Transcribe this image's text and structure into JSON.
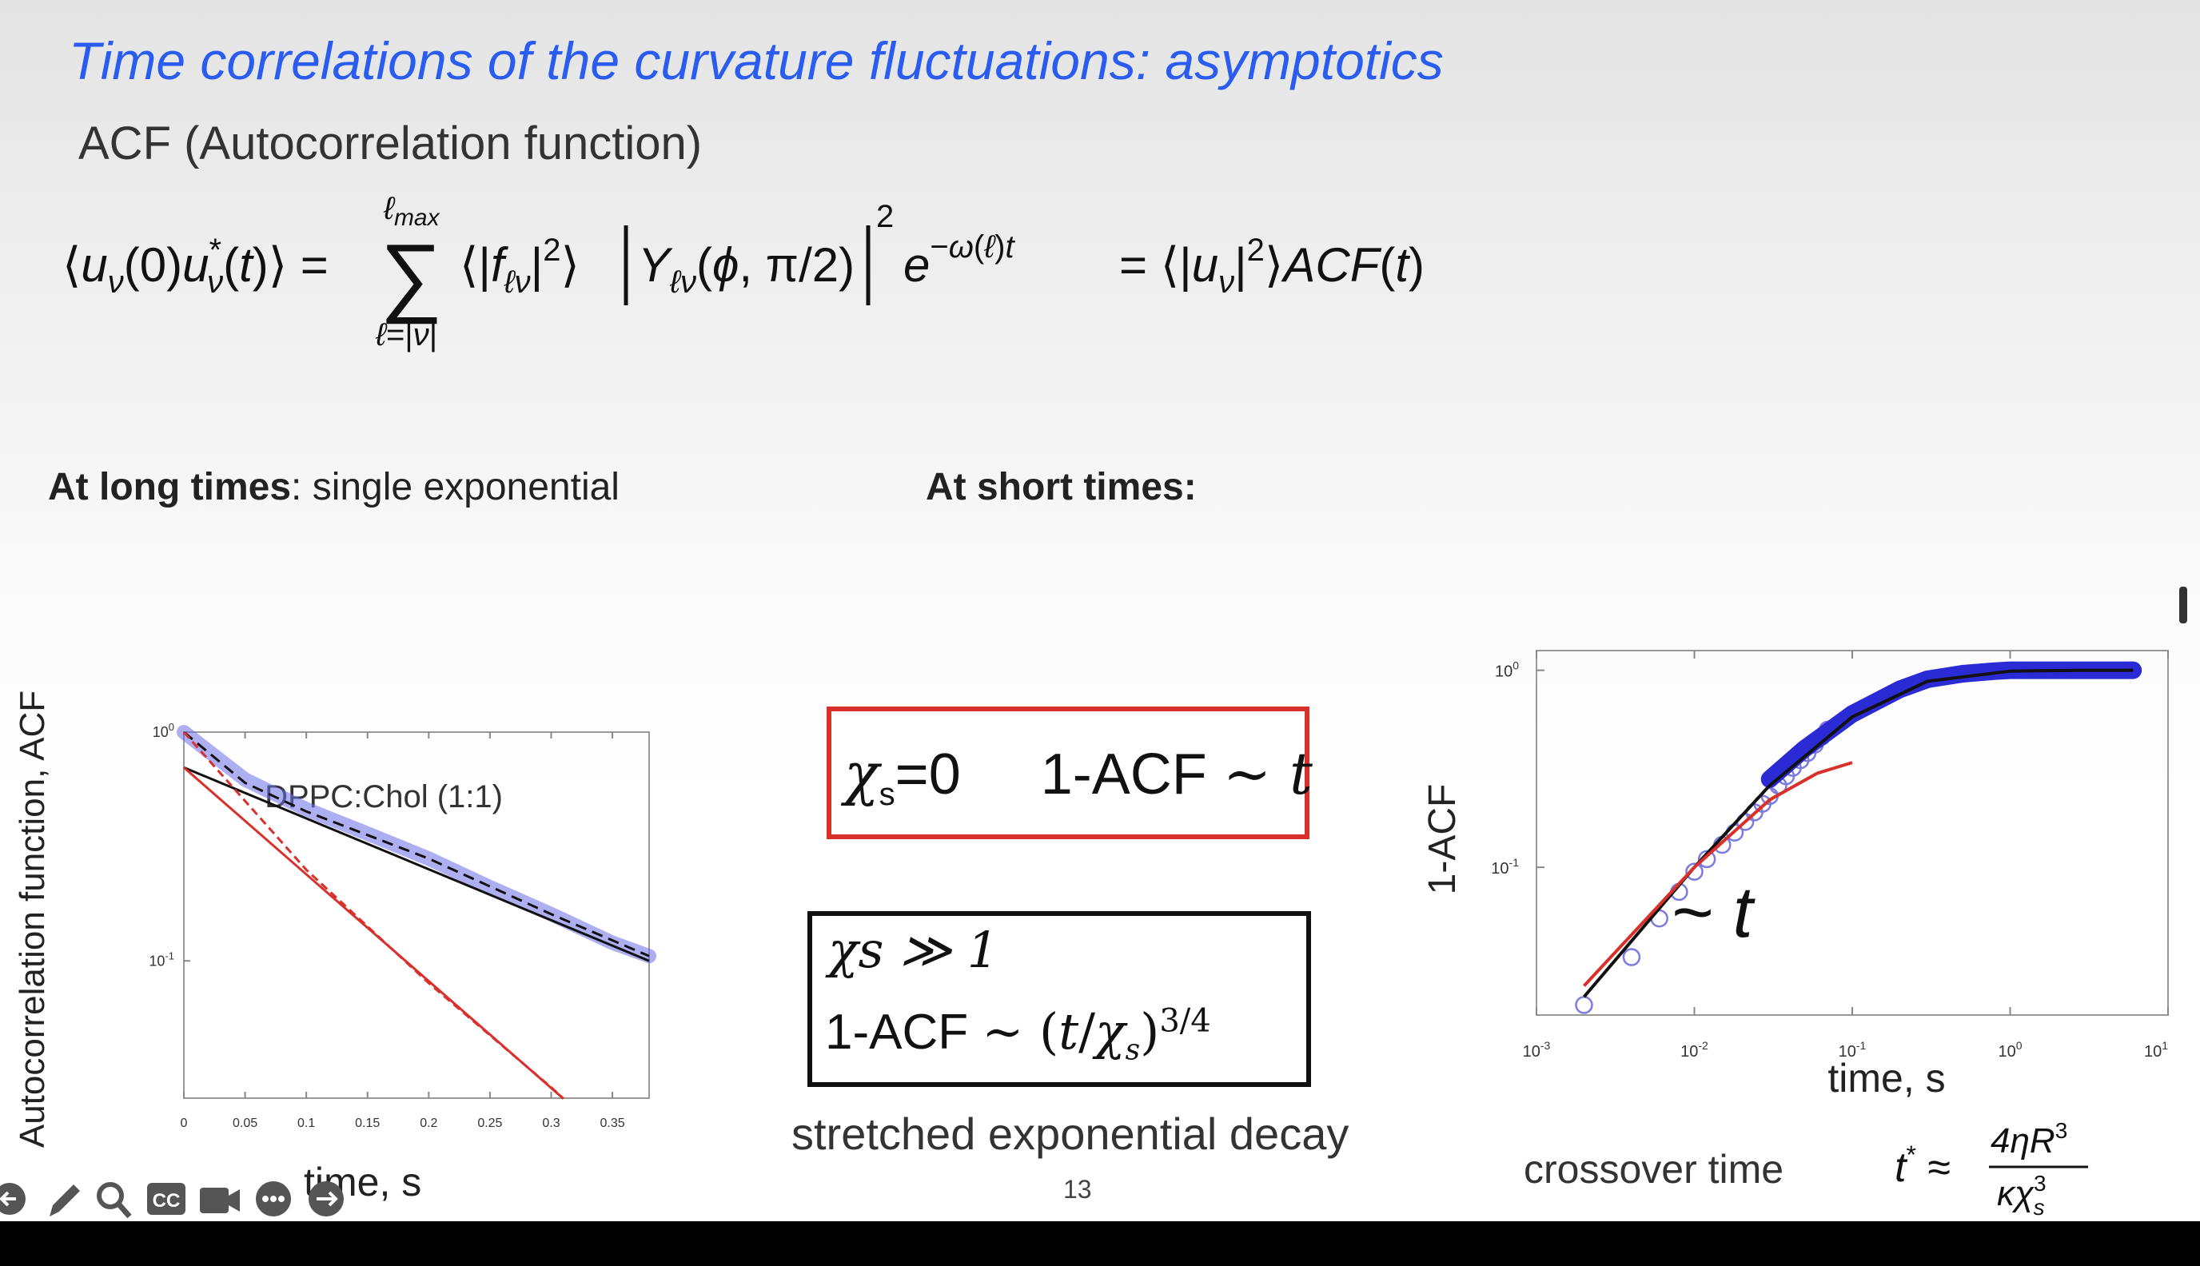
{
  "slide": {
    "title": "Time correlations of the curvature fluctuations: asymptotics",
    "subtitle": "ACF (Autocorrelation function)",
    "long_times_bold": "At long times",
    "long_times_rest": ": single exponential",
    "short_times": "At short times:",
    "box1_label": "1-ACF",
    "box1_chi": "=0",
    "box2_line1": "χs ≫ 1",
    "box2_line2": "1-ACF",
    "stretched": "stretched exponential decay",
    "crossover_label": "crossover time",
    "page_number": "13"
  },
  "colors": {
    "title": "#2a5cf0",
    "red_box": "#d8302a",
    "data_blue": "#3a3ae0",
    "fit_red": "#d8302a"
  },
  "toolbar": {
    "icons": [
      "back-icon",
      "pen-icon",
      "search-icon",
      "cc-icon",
      "camera-icon",
      "more-icon",
      "forward-icon"
    ]
  },
  "chart_data": [
    {
      "type": "line",
      "annotation": "DPPC:Chol (1:1)",
      "xlabel": "time, s",
      "ylabel": "Autocorrelation function, ACF",
      "x_ticks": [
        "0",
        "0.05",
        "0.1",
        "0.15",
        "0.2",
        "0.25",
        "0.3",
        "0.35"
      ],
      "y_ticks": [
        "10",
        "10"
      ],
      "y_tick_exps": [
        "0",
        "-1"
      ],
      "xlim": [
        0,
        0.38
      ],
      "ylim_log10": [
        -1.6,
        0
      ],
      "y_scale": "log",
      "series": [
        {
          "style": "data",
          "x": [
            0,
            0.05,
            0.1,
            0.15,
            0.2,
            0.25,
            0.3,
            0.35,
            0.38
          ],
          "y": [
            1.0,
            0.62,
            0.46,
            0.36,
            0.28,
            0.21,
            0.16,
            0.12,
            0.105
          ]
        },
        {
          "style": "fit-black-solid",
          "x": [
            0,
            0.38
          ],
          "y": [
            0.7,
            0.1
          ]
        },
        {
          "style": "fit-black-dashed",
          "x": [
            0,
            0.05,
            0.1,
            0.2,
            0.3,
            0.38
          ],
          "y": [
            1.0,
            0.6,
            0.45,
            0.28,
            0.16,
            0.105
          ]
        },
        {
          "style": "fit-red-solid",
          "x": [
            0,
            0.31
          ],
          "y": [
            0.7,
            0.025
          ]
        },
        {
          "style": "fit-red-dashed",
          "x": [
            0,
            0.05,
            0.1,
            0.2,
            0.3,
            0.31
          ],
          "y": [
            1.0,
            0.5,
            0.25,
            0.08,
            0.028,
            0.025
          ]
        }
      ]
    },
    {
      "type": "scatter",
      "xlabel": "time, s",
      "ylabel": "1-ACF",
      "annotation": "~ t",
      "x_ticks": [
        "10",
        "10",
        "10",
        "10",
        "10"
      ],
      "x_tick_exps": [
        "-3",
        "-2",
        "-1",
        "0",
        "1"
      ],
      "y_ticks": [
        "10",
        "10"
      ],
      "y_tick_exps": [
        "0",
        "-1"
      ],
      "xlim_log10": [
        -3,
        1
      ],
      "ylim_log10": [
        -1.75,
        0.1
      ],
      "x_scale": "log",
      "y_scale": "log",
      "series": [
        {
          "style": "open-circles",
          "x": [
            0.002,
            0.004,
            0.006,
            0.008,
            0.01,
            0.012,
            0.015,
            0.018,
            0.021,
            0.024,
            0.027,
            0.03,
            0.034,
            0.038,
            0.042,
            0.047,
            0.052,
            0.058,
            0.064,
            0.07
          ],
          "y": [
            0.02,
            0.035,
            0.055,
            0.075,
            0.095,
            0.11,
            0.13,
            0.15,
            0.17,
            0.19,
            0.21,
            0.23,
            0.26,
            0.29,
            0.32,
            0.35,
            0.38,
            0.42,
            0.46,
            0.5
          ]
        },
        {
          "style": "filled-blue",
          "x": [
            0.03,
            0.05,
            0.1,
            0.2,
            0.3,
            0.5,
            0.8,
            1,
            1.5,
            2,
            3,
            4,
            5,
            6
          ],
          "y": [
            0.28,
            0.4,
            0.6,
            0.8,
            0.9,
            0.96,
            0.99,
            1.0,
            1.0,
            1.0,
            1.0,
            1.0,
            1.0,
            1.0
          ]
        },
        {
          "style": "fit-black",
          "x": [
            0.002,
            0.01,
            0.03,
            0.1,
            0.3,
            1,
            3,
            6
          ],
          "y": [
            0.022,
            0.1,
            0.26,
            0.58,
            0.88,
            0.99,
            1.0,
            1.0
          ]
        },
        {
          "style": "fit-red",
          "x": [
            0.002,
            0.01,
            0.03,
            0.06,
            0.1
          ],
          "y": [
            0.025,
            0.1,
            0.22,
            0.3,
            0.34
          ]
        }
      ]
    }
  ]
}
